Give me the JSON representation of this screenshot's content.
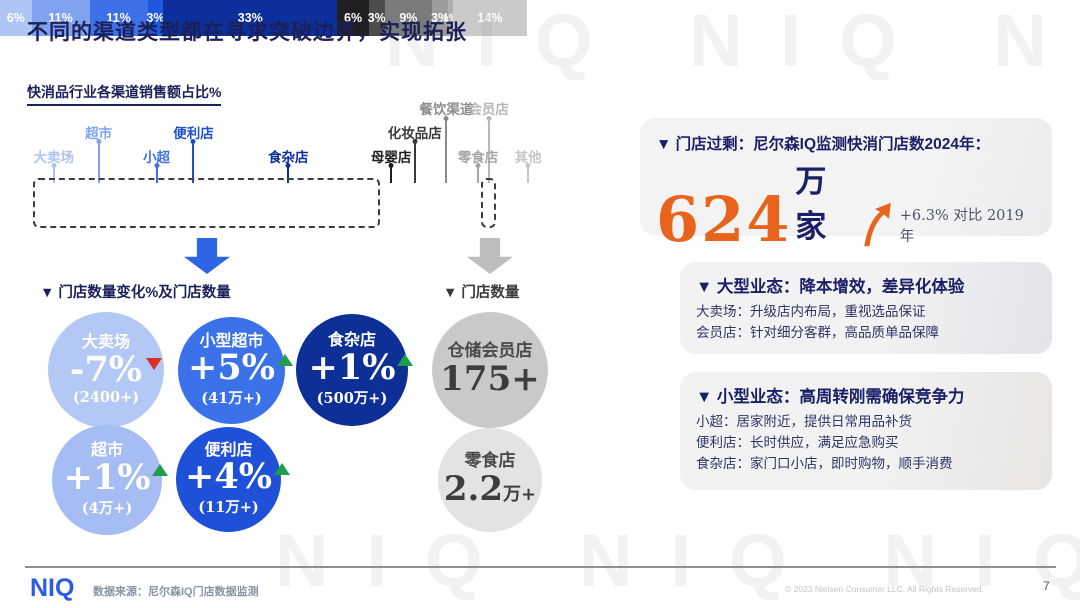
{
  "watermark": "NIQ NIQ NIQ",
  "title": "不同的渠道类型都在寻求突破边界，实现拓张",
  "subtitle": "快消品行业各渠道销售额占比%",
  "chart_data": {
    "type": "bar",
    "title": "快消品行业各渠道销售额占比%",
    "orientation": "horizontal-stacked",
    "unit": "percent",
    "segments": [
      {
        "label": "大卖场",
        "value": 6,
        "display": "6%",
        "color": "#AFC5F4",
        "label_color": "#ACC2F2",
        "label_row": 3
      },
      {
        "label": "超市",
        "value": 11,
        "display": "11%",
        "color": "#7FA3F0",
        "label_color": "#7FA3F0",
        "label_row": 2
      },
      {
        "label": "小超",
        "value": 11,
        "display": "11%",
        "color": "#3E71E9",
        "label_color": "#3E71E9",
        "label_row": 3
      },
      {
        "label": "便利店",
        "value": 3,
        "display": "3%",
        "color": "#2159DE",
        "label_color": "#1D4FD0",
        "label_row": 2
      },
      {
        "label": "食杂店",
        "value": 33,
        "display": "33%",
        "color": "#0D2F9B",
        "label_color": "#0D2F9B",
        "label_row": 3
      },
      {
        "label": "母婴店",
        "value": 6,
        "display": "6%",
        "color": "#202020",
        "label_color": "#1E1E1E",
        "label_row": 3
      },
      {
        "label": "化妆品店",
        "value": 3,
        "display": "3%",
        "color": "#4D4D4D",
        "label_color": "#3A3A3A",
        "label_row": 2
      },
      {
        "label": "餐饮渠道",
        "value": 9,
        "display": "9%",
        "color": "#7B7B7B",
        "label_color": "#8C8C8C",
        "label_row": 1
      },
      {
        "label": "零食店",
        "value": 3,
        "display": "3%",
        "color": "#9C9C9C",
        "label_color": "#A6A6A6",
        "label_row": 3
      },
      {
        "label": "会员店",
        "value": 1,
        "display": "1%",
        "color": "#AFAFAF",
        "label_color": "#B8B8B8",
        "label_row": 1
      },
      {
        "label": "其他",
        "value": 14,
        "display": "14%",
        "color": "#CACACA",
        "label_color": "#C6C6C6",
        "label_row": 3
      }
    ],
    "highlight_boxes": [
      {
        "name": "blue-group-outline",
        "from_segment": 0,
        "to_segment": 4
      },
      {
        "name": "member-store-outline",
        "from_segment": 9,
        "to_segment": 9
      }
    ]
  },
  "left_section": {
    "header": "▼  门店数量变化%及门店数量",
    "bubbles": [
      {
        "name": "大卖场",
        "change": "-7%",
        "count": "(2400+)",
        "trend": "down",
        "color": "#B3C8F5"
      },
      {
        "name": "小型超市",
        "change": "+5%",
        "count": "(41万+)",
        "trend": "up",
        "color": "#3B72EA"
      },
      {
        "name": "食杂店",
        "change": "+1%",
        "count": "(500万+)",
        "trend": "up",
        "color": "#0D2F96"
      },
      {
        "name": "超市",
        "change": "+1%",
        "count": "(4万+)",
        "trend": "up",
        "color": "#A5BDF3"
      },
      {
        "name": "便利店",
        "change": "+4%",
        "count": "(11万+)",
        "trend": "up",
        "color": "#1F50D8"
      }
    ]
  },
  "mid_section": {
    "header": "▼  门店数量",
    "bubbles": [
      {
        "name": "仓储会员店",
        "count": "175+",
        "suffix": "",
        "color": "#C9C9C9"
      },
      {
        "name": "零食店",
        "count": "2.2",
        "suffix": "万+",
        "color": "#E3E3E3"
      }
    ]
  },
  "right_panel": {
    "card1": {
      "header": "▼ 门店过剩：尼尔森IQ监测快消门店数2024年：",
      "big_number": "624",
      "unit": "万家",
      "note": "+6.3% 对比 2019年",
      "accent_color": "#E8631C"
    },
    "card2": {
      "header": "▼ 大型业态：降本增效，差异化体验",
      "lines": [
        "大卖场：升级店内布局，重视选品保证",
        "会员店：针对细分客群，高品质单品保障"
      ]
    },
    "card3": {
      "header": "▼ 小型业态：高周转刚需确保竞争力",
      "lines": [
        "小超：居家附近，提供日常用品补货",
        "便利店：长时供应，满足应急购买",
        "食杂店：家门口小店，即时购物，顺手消费"
      ]
    }
  },
  "footer": {
    "logo": "NIQ",
    "source": "数据来源：尼尔森IQ门店数据监测",
    "copyright": "© 2023 Nielsen Consumer LLC. All Rights Reserved.",
    "page": "7"
  }
}
